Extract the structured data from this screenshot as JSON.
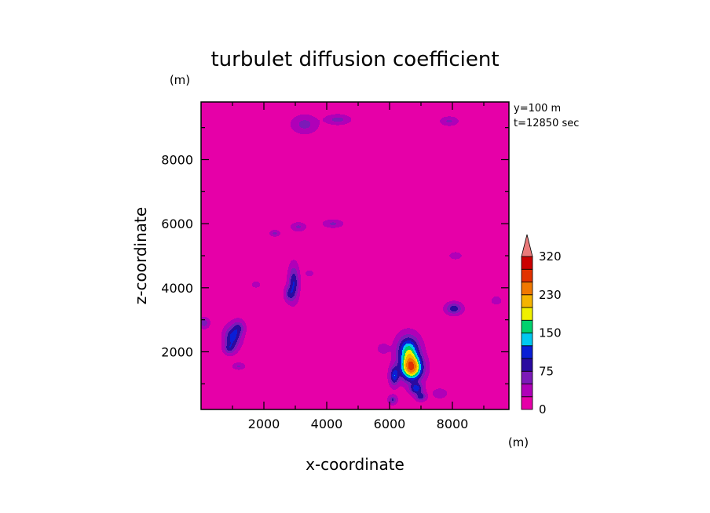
{
  "chart_data": {
    "type": "heatmap",
    "title": "turbulet diffusion coefficient",
    "xlabel": "x-coordinate",
    "ylabel": "z-coordinate",
    "x_unit": "(m)",
    "y_unit": "(m)",
    "annotations": [
      "y=100 m",
      "t=12850 sec"
    ],
    "xlim": [
      0,
      9800
    ],
    "ylim": [
      200,
      9800
    ],
    "x_ticks": [
      2000,
      4000,
      6000,
      8000
    ],
    "y_ticks": [
      2000,
      4000,
      6000,
      8000
    ],
    "x_tick_labels": [
      "2000",
      "4000",
      "6000",
      "8000"
    ],
    "y_tick_labels": [
      "2000",
      "4000",
      "6000",
      "8000"
    ],
    "background_value": 15,
    "colorbar": {
      "levels": [
        0,
        25,
        50,
        75,
        100,
        125,
        150,
        175,
        200,
        230,
        260,
        290,
        320
      ],
      "labeled_values": [
        0,
        75,
        150,
        230,
        320
      ],
      "labels": [
        "0",
        "75",
        "150",
        "230",
        "320"
      ],
      "colors": [
        "#e600a8",
        "#b000b8",
        "#7c1ab8",
        "#2a0aa0",
        "#0a1ed6",
        "#00c8f0",
        "#00d26e",
        "#f0f000",
        "#f5b400",
        "#f07800",
        "#e23200",
        "#cc0000"
      ],
      "extend": "max",
      "extend_color": "#ea7a7a"
    },
    "features": [
      {
        "x": 6700,
        "z": 1500,
        "peak": 240,
        "sx": 230,
        "sz": 260
      },
      {
        "x": 6600,
        "z": 2050,
        "peak": 140,
        "sx": 230,
        "sz": 300
      },
      {
        "x": 6850,
        "z": 850,
        "peak": 95,
        "sx": 140,
        "sz": 120
      },
      {
        "x": 6150,
        "z": 1250,
        "peak": 100,
        "sx": 100,
        "sz": 200
      },
      {
        "x": 7000,
        "z": 600,
        "peak": 75,
        "sx": 110,
        "sz": 90
      },
      {
        "x": 1000,
        "z": 2450,
        "peak": 95,
        "sx": 170,
        "sz": 230
      },
      {
        "x": 1200,
        "z": 2750,
        "peak": 55,
        "sx": 130,
        "sz": 160
      },
      {
        "x": 900,
        "z": 2100,
        "peak": 55,
        "sx": 120,
        "sz": 120
      },
      {
        "x": 2950,
        "z": 4150,
        "peak": 85,
        "sx": 110,
        "sz": 350
      },
      {
        "x": 2800,
        "z": 3800,
        "peak": 55,
        "sx": 100,
        "sz": 160
      },
      {
        "x": 8050,
        "z": 3350,
        "peak": 80,
        "sx": 170,
        "sz": 120
      },
      {
        "x": 4350,
        "z": 9250,
        "peak": 45,
        "sx": 250,
        "sz": 100
      },
      {
        "x": 3300,
        "z": 9100,
        "peak": 45,
        "sx": 260,
        "sz": 180
      },
      {
        "x": 7900,
        "z": 9200,
        "peak": 40,
        "sx": 180,
        "sz": 90
      },
      {
        "x": 3100,
        "z": 5900,
        "peak": 40,
        "sx": 150,
        "sz": 90
      },
      {
        "x": 2350,
        "z": 5700,
        "peak": 45,
        "sx": 100,
        "sz": 60
      },
      {
        "x": 4200,
        "z": 6000,
        "peak": 40,
        "sx": 200,
        "sz": 80
      },
      {
        "x": 8100,
        "z": 5000,
        "peak": 35,
        "sx": 120,
        "sz": 70
      },
      {
        "x": 3450,
        "z": 4450,
        "peak": 35,
        "sx": 80,
        "sz": 60
      },
      {
        "x": 1750,
        "z": 4100,
        "peak": 35,
        "sx": 80,
        "sz": 60
      },
      {
        "x": 1200,
        "z": 1550,
        "peak": 38,
        "sx": 130,
        "sz": 70
      },
      {
        "x": 100,
        "z": 2900,
        "peak": 50,
        "sx": 110,
        "sz": 110
      },
      {
        "x": 9400,
        "z": 3600,
        "peak": 35,
        "sx": 100,
        "sz": 80
      },
      {
        "x": 6100,
        "z": 500,
        "peak": 65,
        "sx": 90,
        "sz": 90
      },
      {
        "x": 7600,
        "z": 700,
        "peak": 32,
        "sx": 150,
        "sz": 100
      },
      {
        "x": 5800,
        "z": 2100,
        "peak": 32,
        "sx": 120,
        "sz": 100
      }
    ]
  }
}
